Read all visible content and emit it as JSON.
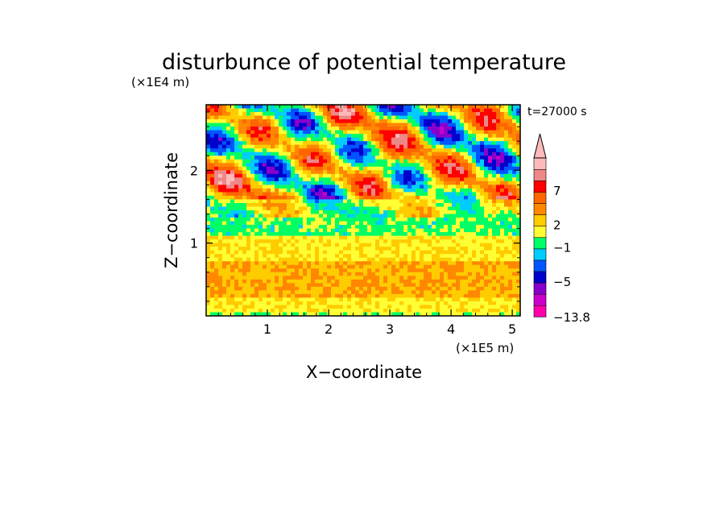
{
  "chart_data": {
    "type": "heatmap",
    "title": "disturbunce of potential temperature",
    "time_label": "t=27000 s",
    "xlabel": "X−coordinate",
    "ylabel": "Z−coordinate",
    "x_unit": "(×1E5 m)",
    "y_unit": "(×1E4 m)",
    "xlim": [
      0,
      5.13
    ],
    "ylim": [
      0,
      2.9
    ],
    "x_ticks": [
      1,
      2,
      3,
      4,
      5
    ],
    "y_ticks": [
      1,
      2
    ],
    "x_tick_labels": [
      "1",
      "2",
      "3",
      "4",
      "5"
    ],
    "y_tick_labels": [
      "1",
      "2"
    ],
    "colorbar": {
      "labels": [
        "7",
        "2",
        "−1",
        "−5",
        "−13.8"
      ],
      "label_values": [
        7,
        2,
        -1,
        -5,
        -13.8
      ],
      "bins": [
        {
          "color": "#ff00aa"
        },
        {
          "color": "#cc00cc"
        },
        {
          "color": "#8800cc"
        },
        {
          "color": "#0000cc"
        },
        {
          "color": "#0055ff"
        },
        {
          "color": "#00ccff"
        },
        {
          "color": "#00ff66"
        },
        {
          "color": "#ffff33"
        },
        {
          "color": "#ffcc00"
        },
        {
          "color": "#ff8800"
        },
        {
          "color": "#ff6600"
        },
        {
          "color": "#ff0000"
        },
        {
          "color": "#ee8888"
        },
        {
          "color": "#ffbbbb"
        }
      ],
      "extend": "max"
    },
    "layers": [
      {
        "z_range": [
          0.0,
          0.05
        ],
        "dominant": "green/yellow"
      },
      {
        "z_range": [
          0.05,
          0.25
        ],
        "dominant": "yellow"
      },
      {
        "z_range": [
          0.25,
          0.75
        ],
        "dominant": "orange"
      },
      {
        "z_range": [
          0.75,
          1.1
        ],
        "dominant": "yellow"
      },
      {
        "z_range": [
          1.1,
          1.35
        ],
        "dominant": "green"
      },
      {
        "z_range": [
          1.35,
          2.9
        ],
        "dominant": "mixed red/orange/blue wave pattern"
      }
    ]
  }
}
